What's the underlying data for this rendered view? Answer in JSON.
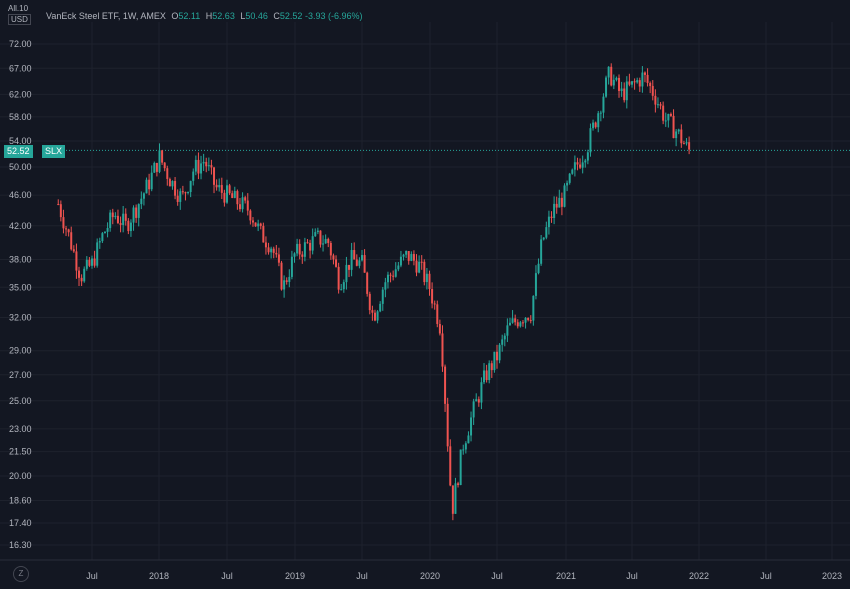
{
  "header": {
    "unit_top": "All.10",
    "unit_currency": "USD",
    "title": "VanEck Steel ETF, 1W, AMEX",
    "open_label": "O",
    "open": "52.11",
    "high_label": "H",
    "high": "52.63",
    "low_label": "L",
    "low": "50.46",
    "close_label": "C",
    "close": "52.52",
    "change": "-3.93 (-6.96%)"
  },
  "price_badge": {
    "value": "52.52",
    "symbol": "SLX"
  },
  "settings_icon": "Z",
  "colors": {
    "background": "#131722",
    "up": "#26a69a",
    "down": "#ef5350",
    "grid": "#1e222d",
    "text": "#b2b5be"
  },
  "chart_data": {
    "type": "candlestick",
    "title": "VanEck Steel ETF, 1W, AMEX",
    "y_ticks": [
      "72.00",
      "67.00",
      "62.00",
      "58.00",
      "54.00",
      "50.00",
      "46.00",
      "42.00",
      "38.00",
      "35.00",
      "32.00",
      "29.00",
      "27.00",
      "25.00",
      "23.00",
      "21.50",
      "20.00",
      "18.60",
      "17.40",
      "16.30"
    ],
    "x_ticks": [
      "Jul",
      "2018",
      "Jul",
      "2019",
      "Jul",
      "2020",
      "Jul",
      "2021",
      "Jul",
      "2022",
      "Jul",
      "2023"
    ],
    "ylim": [
      15.5,
      76.5
    ],
    "scale": "log",
    "last_price": 52.52,
    "weekly_close_path": [
      [
        "2017-04",
        44.8
      ],
      [
        "2017-05",
        40.5
      ],
      [
        "2017-06",
        36.2
      ],
      [
        "2017-07",
        37.5
      ],
      [
        "2017-08",
        41.0
      ],
      [
        "2017-09",
        43.5
      ],
      [
        "2017-10",
        42.0
      ],
      [
        "2017-11",
        44.5
      ],
      [
        "2017-12",
        47.5
      ],
      [
        "2018-01",
        51.5
      ],
      [
        "2018-02",
        48.0
      ],
      [
        "2018-03",
        45.5
      ],
      [
        "2018-04",
        49.5
      ],
      [
        "2018-05",
        51.0
      ],
      [
        "2018-06",
        47.0
      ],
      [
        "2018-07",
        46.0
      ],
      [
        "2018-08",
        45.0
      ],
      [
        "2018-09",
        44.0
      ],
      [
        "2018-10",
        41.0
      ],
      [
        "2018-11",
        39.5
      ],
      [
        "2018-12",
        35.0
      ],
      [
        "2019-01",
        38.5
      ],
      [
        "2019-02",
        39.5
      ],
      [
        "2019-03",
        40.5
      ],
      [
        "2019-04",
        40.0
      ],
      [
        "2019-05",
        35.5
      ],
      [
        "2019-06",
        38.0
      ],
      [
        "2019-07",
        37.5
      ],
      [
        "2019-08",
        32.0
      ],
      [
        "2019-09",
        35.5
      ],
      [
        "2019-10",
        37.0
      ],
      [
        "2019-11",
        38.5
      ],
      [
        "2019-12",
        37.5
      ],
      [
        "2020-01",
        35.0
      ],
      [
        "2020-02",
        31.0
      ],
      [
        "2020-03",
        18.0
      ],
      [
        "2020-04",
        22.0
      ],
      [
        "2020-05",
        24.5
      ],
      [
        "2020-06",
        27.0
      ],
      [
        "2020-07",
        28.5
      ],
      [
        "2020-08",
        31.0
      ],
      [
        "2020-09",
        32.0
      ],
      [
        "2020-10",
        32.5
      ],
      [
        "2020-11",
        40.0
      ],
      [
        "2020-12",
        44.0
      ],
      [
        "2021-01",
        46.0
      ],
      [
        "2021-02",
        50.0
      ],
      [
        "2021-03",
        53.0
      ],
      [
        "2021-04",
        59.0
      ],
      [
        "2021-05",
        66.0
      ],
      [
        "2021-06",
        62.0
      ],
      [
        "2021-07",
        63.5
      ],
      [
        "2021-08",
        65.5
      ],
      [
        "2021-09",
        62.0
      ],
      [
        "2021-10",
        57.5
      ],
      [
        "2021-11",
        55.5
      ],
      [
        "2021-12",
        52.52
      ]
    ]
  }
}
